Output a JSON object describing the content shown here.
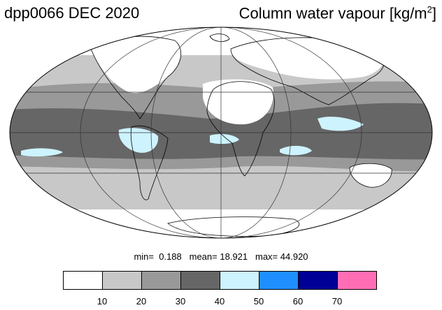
{
  "header": {
    "left_title": "dpp0066 DEC 2020",
    "right_title_main": "Column water vapour [kg/m",
    "right_title_sup": "2",
    "right_title_end": "]"
  },
  "stats": {
    "min_label": "min=",
    "min_value": "0.188",
    "mean_label": "mean=",
    "mean_value": "18.921",
    "max_label": "max=",
    "max_value": "44.920"
  },
  "colorbar": {
    "colors": [
      "#ffffff",
      "#c8c8c8",
      "#999999",
      "#666666",
      "#cdf3ff",
      "#1f8fff",
      "#000096",
      "#ff6eb4"
    ],
    "labels": [
      "10",
      "20",
      "30",
      "40",
      "50",
      "60",
      "70"
    ]
  },
  "map": {
    "projection": "Mollweide",
    "fill_colors": {
      "very_dry": "#ffffff",
      "dry": "#c8c8c8",
      "moderate": "#999999",
      "moist": "#666666",
      "very_moist": "#cdf3ff"
    }
  }
}
